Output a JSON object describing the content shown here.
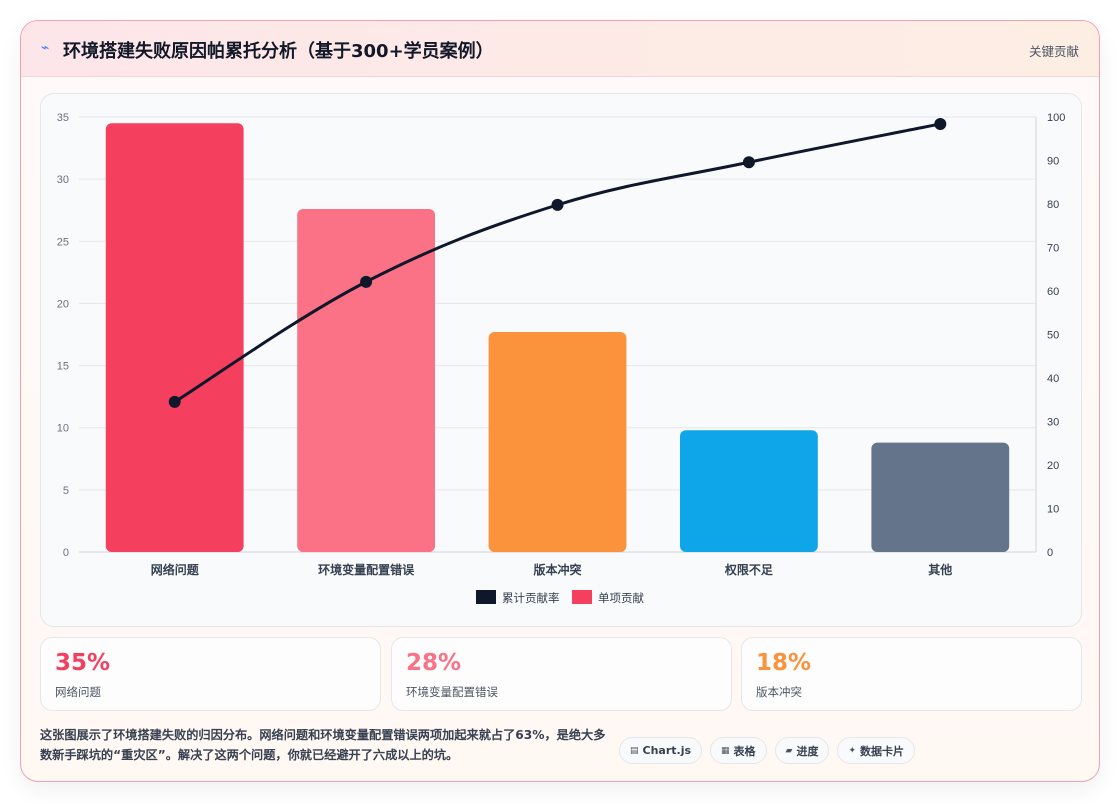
{
  "header": {
    "icon": "⌁",
    "title": "环境搭建失败原因帕累托分析（基于300+学员案例）",
    "badge": "关键贡献"
  },
  "chart_data": {
    "type": "bar",
    "categories": [
      "网络问题",
      "环境变量配置错误",
      "版本冲突",
      "权限不足",
      "其他"
    ],
    "series": [
      {
        "name": "单项贡献",
        "type": "bar",
        "axis": "left",
        "values": [
          34.5,
          27.6,
          17.7,
          9.8,
          8.8
        ]
      },
      {
        "name": "累计贡献率",
        "type": "line",
        "axis": "right",
        "values": [
          34.5,
          62.1,
          79.8,
          89.6,
          98.4
        ]
      }
    ],
    "bar_colors": [
      "#f43f5e",
      "#fb7185",
      "#fb923c",
      "#0ea5e9",
      "#64748b"
    ],
    "line_color": "#0f172a",
    "legend_color_bar": "#f43f5e",
    "legend_order": [
      "累计贡献率",
      "单项贡献"
    ],
    "legend_position": "bottom",
    "ylim_left": [
      0,
      35
    ],
    "yticks_left": [
      0,
      5,
      10,
      15,
      20,
      25,
      30,
      35
    ],
    "ylim_right": [
      0,
      100
    ],
    "yticks_right": [
      0,
      10,
      20,
      30,
      40,
      50,
      60,
      70,
      80,
      90,
      100
    ],
    "grid": true
  },
  "stats": [
    {
      "value": "35%",
      "label": "网络问题",
      "color": "#f43f5e"
    },
    {
      "value": "28%",
      "label": "环境变量配置错误",
      "color": "#fb7185"
    },
    {
      "value": "18%",
      "label": "版本冲突",
      "color": "#fb923c"
    }
  ],
  "description": "这张图展示了环境搭建失败的归因分布。网络问题和环境变量配置错误两项加起来就占了63%，是绝大多数新手踩坑的“重灾区”。解决了这两个问题，你就已经避开了六成以上的坑。",
  "tags": [
    {
      "icon": "▤",
      "label": "Chart.js"
    },
    {
      "icon": "▦",
      "label": "表格"
    },
    {
      "icon": "▰",
      "label": "进度"
    },
    {
      "icon": "✦",
      "label": "数据卡片"
    }
  ]
}
